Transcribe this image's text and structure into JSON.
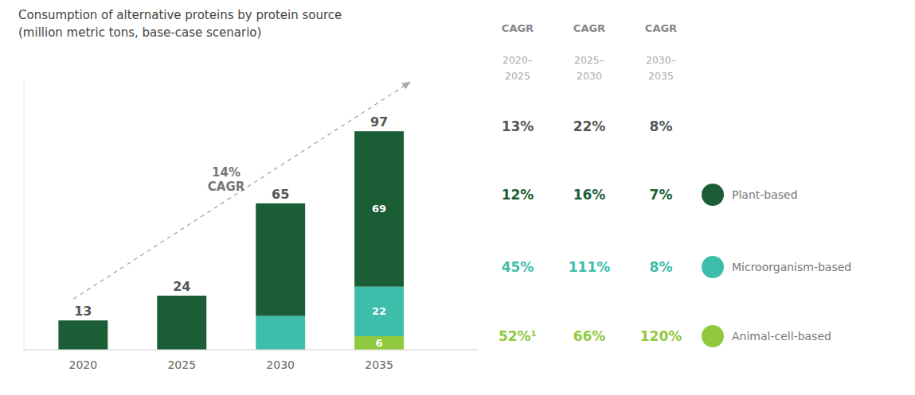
{
  "chart_data": {
    "type": "bar",
    "stacked": true,
    "title": "Consumption of alternative proteins by protein source",
    "subtitle": "(million metric tons, base-case scenario)",
    "categories": [
      "2020",
      "2025",
      "2030",
      "2035"
    ],
    "series": [
      {
        "name": "Animal-cell-based",
        "color": "#91c93e",
        "values": [
          0,
          0,
          0,
          6
        ],
        "value_labels": [
          null,
          null,
          null,
          "6"
        ],
        "cagr": {
          "values": [
            52,
            66,
            120
          ],
          "value_labels": [
            "52%¹",
            "66%",
            "120%"
          ]
        }
      },
      {
        "name": "Microorganism-based",
        "color": "#3dbdaa",
        "values": [
          0,
          0,
          15,
          22
        ],
        "value_labels": [
          null,
          null,
          null,
          "22"
        ],
        "cagr": {
          "values": [
            45,
            111,
            8
          ],
          "value_labels": [
            "45%",
            "111%",
            "8%"
          ]
        }
      },
      {
        "name": "Plant-based",
        "color": "#1b5e36",
        "values": [
          13,
          24,
          50,
          69
        ],
        "value_labels": [
          null,
          null,
          null,
          "69"
        ],
        "cagr": {
          "values": [
            12,
            16,
            7
          ],
          "value_labels": [
            "12%",
            "16%",
            "7%"
          ]
        }
      }
    ],
    "totals": [
      13,
      24,
      65,
      97
    ],
    "ylim": [
      0,
      120
    ],
    "yticks": [],
    "tick_labels": "x",
    "grid": false,
    "legend": "right",
    "annotations": [
      "14%",
      "CAGR"
    ],
    "cagr": {
      "headers": [
        [
          "CAGR",
          "2020–",
          "2025"
        ],
        [
          "CAGR",
          "2025–",
          "2030"
        ],
        [
          "CAGR",
          "2030–",
          "2035"
        ]
      ],
      "values": [
        13,
        22,
        8
      ],
      "value_labels": [
        "13%",
        "22%",
        "8%"
      ]
    }
  }
}
